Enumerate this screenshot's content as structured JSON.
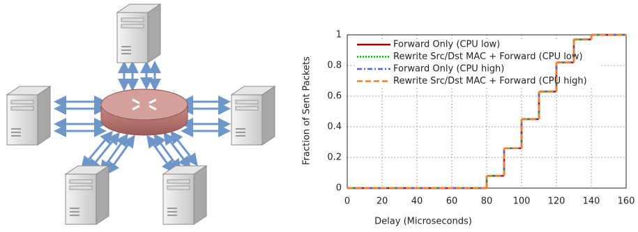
{
  "chart_data": {
    "type": "step",
    "xlabel": "Delay (Microseconds)",
    "ylabel": "Fraction of Sent Packets",
    "x": [
      0,
      80,
      90,
      100,
      110,
      120,
      130,
      140,
      160
    ],
    "series": [
      {
        "name": "Forward Only (CPU low)",
        "color": "#a00000",
        "style": "solid",
        "values": [
          0,
          0.08,
          0.26,
          0.45,
          0.63,
          0.82,
          0.97,
          1,
          1
        ]
      },
      {
        "name": "Rewrite Src/Dst MAC + Forward (CPU low)",
        "color": "#00b000",
        "style": "dotted",
        "values": [
          0,
          0.08,
          0.26,
          0.45,
          0.63,
          0.82,
          0.97,
          1,
          1
        ]
      },
      {
        "name": "Forward Only (CPU high)",
        "color": "#5060e0",
        "style": "dashdot",
        "values": [
          0,
          0.08,
          0.26,
          0.45,
          0.63,
          0.82,
          0.97,
          1,
          1
        ]
      },
      {
        "name": "Rewrite Src/Dst MAC + Forward (CPU high)",
        "color": "#ff7f27",
        "style": "dashed",
        "values": [
          0,
          0.08,
          0.26,
          0.45,
          0.63,
          0.82,
          0.97,
          1,
          1
        ]
      }
    ],
    "xlim": [
      0,
      160
    ],
    "xticks": [
      0,
      20,
      40,
      60,
      80,
      100,
      120,
      140,
      160
    ],
    "ylim": [
      0,
      1
    ],
    "yticks": [
      0,
      0.2,
      0.4,
      0.6,
      0.8,
      1
    ],
    "grid": true,
    "legend": "top-left"
  }
}
